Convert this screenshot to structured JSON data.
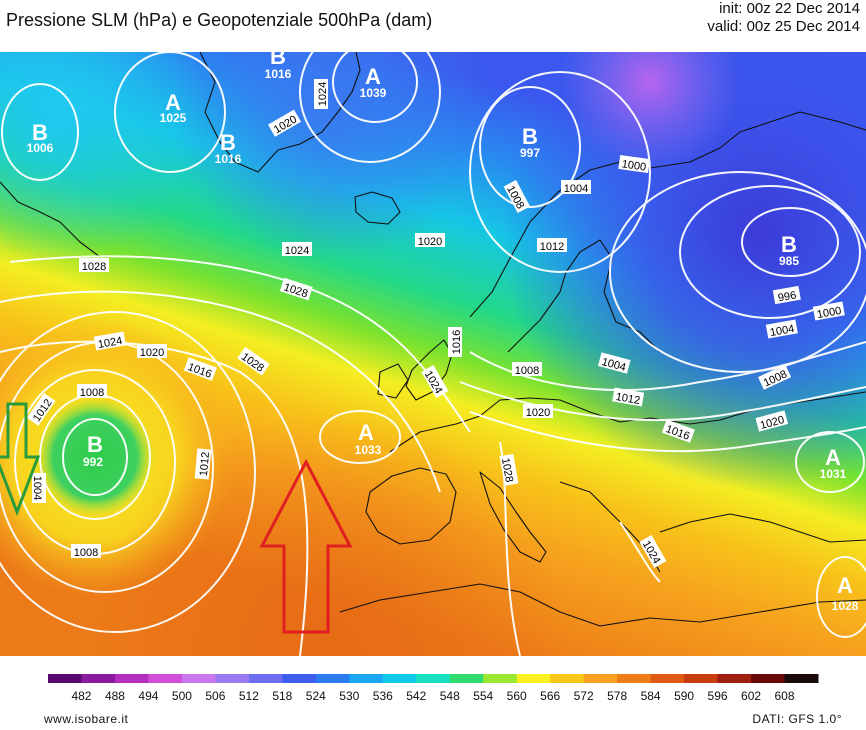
{
  "header": {
    "title": "Pressione SLM (hPa) e Geopotenziale 500hPa (dam)",
    "init": "init: 00z 22 Dec 2014",
    "valid": "valid: 00z 25 Dec 2014"
  },
  "map": {
    "centres": [
      {
        "letter": "B",
        "value": "1006"
      },
      {
        "letter": "A",
        "value": "1025"
      },
      {
        "letter": "B",
        "value": "1016"
      },
      {
        "letter": "B",
        "value": "1016"
      },
      {
        "letter": "A",
        "value": "1039"
      },
      {
        "letter": "B",
        "value": "997"
      },
      {
        "letter": "B",
        "value": "985"
      },
      {
        "letter": "B",
        "value": "992"
      },
      {
        "letter": "A",
        "value": "1033"
      },
      {
        "letter": "A",
        "value": "1031"
      },
      {
        "letter": "A",
        "value": "1028"
      }
    ],
    "isobar_labels": [
      "1024",
      "1020",
      "1024",
      "1028",
      "1028",
      "1020",
      "1008",
      "1004",
      "1000",
      "1012",
      "996",
      "1000",
      "1004",
      "1024",
      "1020",
      "1016",
      "1028",
      "1016",
      "1004",
      "1008",
      "1012",
      "1008",
      "1016",
      "1020",
      "1012",
      "1008",
      "1004",
      "1012",
      "1008",
      "1028",
      "1020",
      "1024",
      "1024"
    ],
    "arrows": [
      {
        "direction": "down",
        "color": "#2a9a3a"
      },
      {
        "direction": "up",
        "color": "#e02020"
      }
    ]
  },
  "colorbar": {
    "ticks": [
      "482",
      "488",
      "494",
      "500",
      "506",
      "512",
      "518",
      "524",
      "530",
      "536",
      "542",
      "548",
      "554",
      "560",
      "566",
      "572",
      "578",
      "584",
      "590",
      "596",
      "602",
      "608"
    ],
    "colors": [
      "#5a0a6e",
      "#8a1a9e",
      "#b42ec0",
      "#d24fd8",
      "#c878ec",
      "#9a7cf0",
      "#6e6ef2",
      "#3e5cf0",
      "#2a7cf0",
      "#1aa6f0",
      "#10c8e8",
      "#18e0c0",
      "#30dc70",
      "#9ce830",
      "#f8f020",
      "#f8c818",
      "#f8a020",
      "#f07c18",
      "#e05a14",
      "#c83c10",
      "#a01e10",
      "#6a0a0a",
      "#1a0a0a"
    ]
  },
  "footer": {
    "source": "www.isobare.it",
    "data": "DATI: GFS 1.0°"
  }
}
